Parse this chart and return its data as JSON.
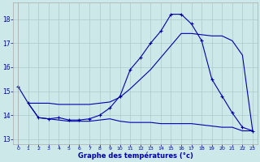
{
  "line1_x": [
    0,
    1,
    2,
    3,
    4,
    5,
    6,
    7,
    8,
    9,
    10,
    11,
    12,
    13,
    14,
    15,
    16,
    17,
    18,
    19,
    20,
    21,
    22,
    23
  ],
  "line1_y": [
    15.2,
    14.5,
    13.9,
    13.85,
    13.9,
    13.8,
    13.8,
    13.85,
    14.0,
    14.3,
    14.8,
    15.9,
    16.4,
    17.0,
    17.5,
    18.2,
    18.2,
    17.8,
    17.1,
    15.5,
    14.8,
    14.1,
    13.5,
    13.35
  ],
  "line2_x": [
    1,
    2,
    3,
    4,
    5,
    6,
    7,
    8,
    9,
    10,
    11,
    12,
    13,
    14,
    15,
    16,
    17,
    18,
    19,
    20,
    21,
    22,
    23
  ],
  "line2_y": [
    14.5,
    14.5,
    14.5,
    14.45,
    14.45,
    14.45,
    14.45,
    14.5,
    14.55,
    14.75,
    15.1,
    15.5,
    15.9,
    16.4,
    16.9,
    17.4,
    17.4,
    17.35,
    17.3,
    17.3,
    17.1,
    16.5,
    13.35
  ],
  "line3_x": [
    1,
    2,
    3,
    4,
    5,
    6,
    7,
    8,
    9,
    10,
    11,
    12,
    13,
    14,
    15,
    16,
    17,
    18,
    19,
    20,
    21,
    22,
    23
  ],
  "line3_y": [
    14.5,
    13.9,
    13.85,
    13.8,
    13.75,
    13.75,
    13.75,
    13.8,
    13.85,
    13.75,
    13.7,
    13.7,
    13.7,
    13.65,
    13.65,
    13.65,
    13.65,
    13.6,
    13.55,
    13.5,
    13.5,
    13.35,
    13.35
  ],
  "xlabel": "Graphe des températures (°c)",
  "yticks": [
    13,
    14,
    15,
    16,
    17,
    18
  ],
  "xticks": [
    0,
    1,
    2,
    3,
    4,
    5,
    6,
    7,
    8,
    9,
    10,
    11,
    12,
    13,
    14,
    15,
    16,
    17,
    18,
    19,
    20,
    21,
    22,
    23
  ],
  "ylim": [
    12.8,
    18.7
  ],
  "xlim": [
    -0.5,
    23.5
  ],
  "bg_color": "#cce8e8",
  "grid_color": "#aacccc",
  "line_color": "#0000aa",
  "label_color": "#0000aa",
  "spine_color": "#aaaaaa"
}
